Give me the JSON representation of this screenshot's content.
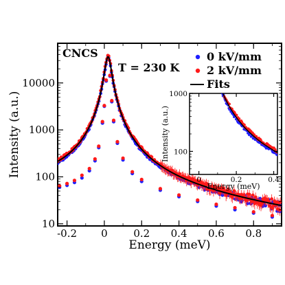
{
  "chart_data": {
    "type": "scatter",
    "title": "",
    "xlabel": "Energy (meV)",
    "ylabel": "Intensity (a.u.)",
    "xlim": [
      -0.25,
      0.95
    ],
    "ylim": [
      9,
      70000
    ],
    "yscale": "log",
    "x_ticks": [
      -0.2,
      0,
      0.2,
      0.4,
      0.6,
      0.8
    ],
    "x_tick_labels": [
      "-0.2",
      "0",
      "0.2",
      "0.4",
      "0.6",
      "0.8"
    ],
    "y_ticks": [
      10,
      100,
      1000,
      10000
    ],
    "y_tick_labels": [
      "10",
      "100",
      "1000",
      "10000"
    ],
    "annotations": [
      "CNCS",
      "T = 230 K"
    ],
    "legend": {
      "placement": "top-right",
      "entries": [
        {
          "label": "0 kV/mm",
          "color": "#1f1fff",
          "marker": "circle"
        },
        {
          "label": "2 kV/mm",
          "color": "#ff1a1a",
          "marker": "circle"
        },
        {
          "label": "Fits",
          "color": "#000000",
          "marker": "line"
        }
      ]
    },
    "model": {
      "peak_center": 0.02,
      "peak_amplitude": 36000,
      "peak_halfwidth": 0.018,
      "background_start": 55,
      "background_end": 11
    },
    "series": [
      {
        "name": "0 kV/mm",
        "color": "#1f1fff",
        "points": [
          [
            -0.24,
            60
          ],
          [
            -0.2,
            66
          ],
          [
            -0.16,
            76
          ],
          [
            -0.12,
            95
          ],
          [
            -0.08,
            135
          ],
          [
            -0.05,
            220
          ],
          [
            -0.03,
            420
          ],
          [
            -0.01,
            1400
          ],
          [
            0.0,
            3200
          ],
          [
            0.01,
            11000
          ],
          [
            0.02,
            36000
          ],
          [
            0.03,
            14000
          ],
          [
            0.04,
            4000
          ],
          [
            0.05,
            1500
          ],
          [
            0.07,
            520
          ],
          [
            0.1,
            230
          ],
          [
            0.15,
            118
          ],
          [
            0.2,
            80
          ],
          [
            0.3,
            52
          ],
          [
            0.4,
            38
          ],
          [
            0.5,
            30
          ],
          [
            0.6,
            24
          ],
          [
            0.7,
            20
          ],
          [
            0.8,
            17
          ],
          [
            0.9,
            14
          ]
        ]
      },
      {
        "name": "2 kV/mm",
        "color": "#ff1a1a",
        "points": [
          [
            -0.24,
            64
          ],
          [
            -0.2,
            72
          ],
          [
            -0.16,
            84
          ],
          [
            -0.12,
            108
          ],
          [
            -0.08,
            150
          ],
          [
            -0.05,
            240
          ],
          [
            -0.03,
            450
          ],
          [
            -0.01,
            1500
          ],
          [
            0.0,
            3300
          ],
          [
            0.01,
            11500
          ],
          [
            0.02,
            34000
          ],
          [
            0.03,
            14500
          ],
          [
            0.04,
            4200
          ],
          [
            0.05,
            1600
          ],
          [
            0.07,
            560
          ],
          [
            0.1,
            250
          ],
          [
            0.15,
            128
          ],
          [
            0.2,
            88
          ],
          [
            0.3,
            56
          ],
          [
            0.4,
            41
          ],
          [
            0.5,
            32
          ],
          [
            0.6,
            26
          ],
          [
            0.7,
            22
          ],
          [
            0.8,
            18
          ],
          [
            0.9,
            15
          ]
        ]
      }
    ],
    "inset": {
      "xlabel": "Energy (meV)",
      "ylabel": "Intensity (a.u.)",
      "xlim": [
        -0.05,
        0.42
      ],
      "ylim": [
        40,
        1000
      ],
      "yscale": "log",
      "x_ticks": [
        0,
        0.2,
        0.4
      ],
      "x_tick_labels": [
        "0",
        "0.2",
        "0.4"
      ],
      "y_ticks": [
        100,
        1000
      ],
      "y_tick_labels": [
        "100",
        "1000"
      ]
    }
  }
}
